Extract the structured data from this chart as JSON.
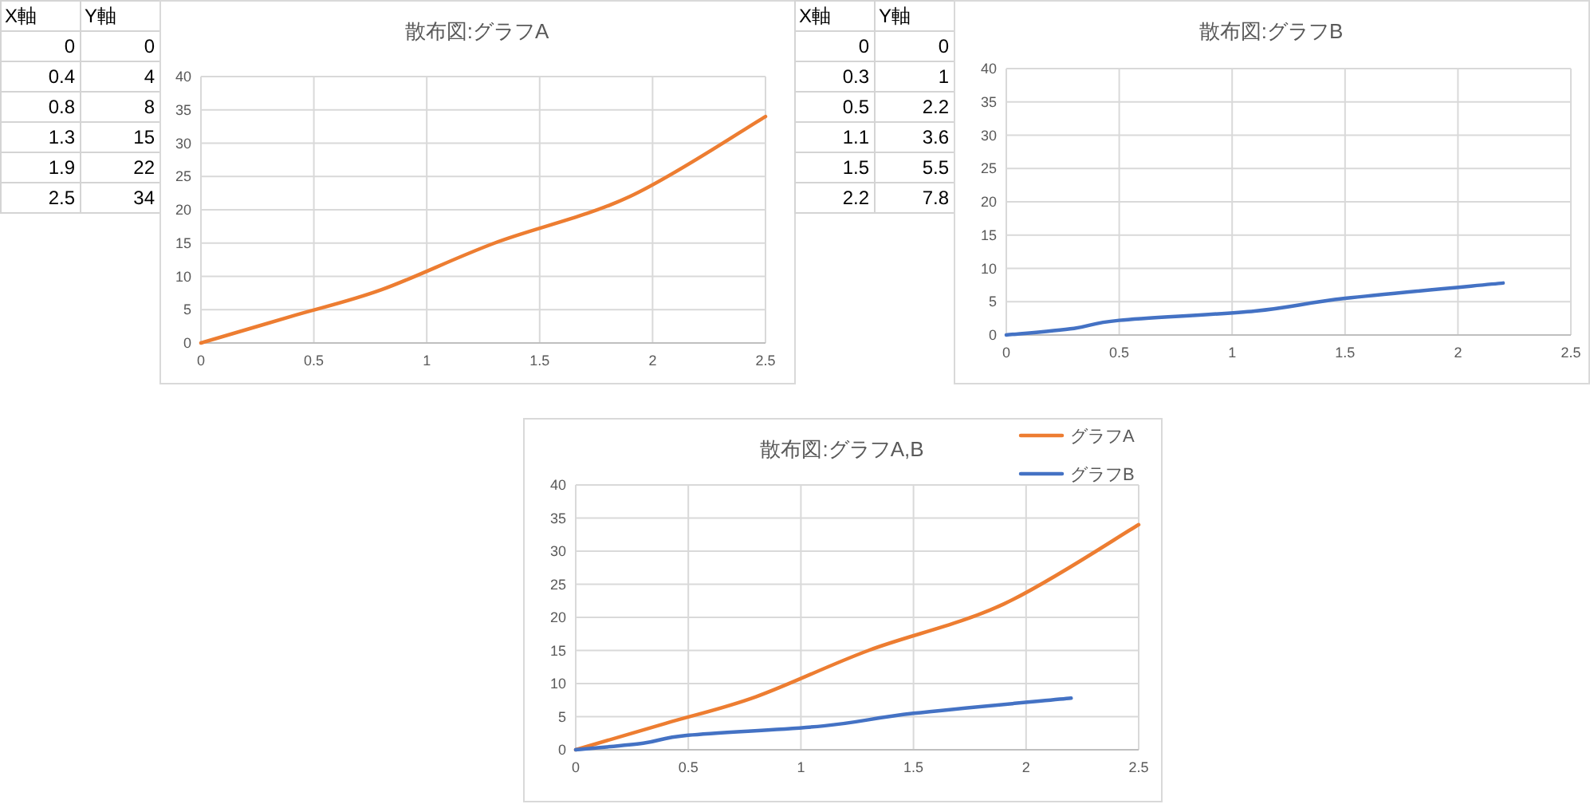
{
  "chart_data": [
    {
      "type": "other",
      "annotations": [
        "X軸",
        "Y軸",
        "0",
        "0",
        "0.4",
        "4",
        "0.8",
        "8",
        "1.3",
        "15",
        "1.9",
        "22",
        "2.5",
        "34"
      ]
    },
    {
      "type": "line",
      "title": "散布図:グラフA",
      "x": [
        0,
        0.4,
        0.8,
        1.3,
        1.9,
        2.5
      ],
      "values": [
        0,
        4,
        8,
        15,
        22,
        34
      ],
      "color": "#ed7d31",
      "xlim": [
        0,
        2.5
      ],
      "xticks": [
        0,
        0.5,
        1,
        1.5,
        2,
        2.5
      ],
      "ylim": [
        0,
        40
      ],
      "yticks": [
        0,
        5,
        10,
        15,
        20,
        25,
        30,
        35,
        40
      ],
      "grid": true,
      "marker": "none",
      "line_style": "solid"
    },
    {
      "type": "other",
      "annotations": [
        "X軸",
        "Y軸",
        "0",
        "0",
        "0.3",
        "1",
        "0.5",
        "2.2",
        "1.1",
        "3.6",
        "1.5",
        "5.5",
        "2.2",
        "7.8"
      ]
    },
    {
      "type": "line",
      "title": "散布図:グラフB",
      "x": [
        0,
        0.3,
        0.5,
        1.1,
        1.5,
        2.2
      ],
      "values": [
        0,
        1,
        2.2,
        3.6,
        5.5,
        7.8
      ],
      "color": "#4472c4",
      "xlim": [
        0,
        2.5
      ],
      "xticks": [
        0,
        0.5,
        1,
        1.5,
        2,
        2.5
      ],
      "ylim": [
        0,
        40
      ],
      "yticks": [
        0,
        5,
        10,
        15,
        20,
        25,
        30,
        35,
        40
      ],
      "grid": true,
      "marker": "none",
      "line_style": "solid"
    },
    {
      "type": "line",
      "title": "散布図:グラフA,B",
      "legend": "top right",
      "series": [
        {
          "name": "グラフA",
          "color": "#ed7d31",
          "x": [
            0,
            0.4,
            0.8,
            1.3,
            1.9,
            2.5
          ],
          "values": [
            0,
            4,
            8,
            15,
            22,
            34
          ]
        },
        {
          "name": "グラフB",
          "color": "#4472c4",
          "x": [
            0,
            0.3,
            0.5,
            1.1,
            1.5,
            2.2
          ],
          "values": [
            0,
            1,
            2.2,
            3.6,
            5.5,
            7.8
          ]
        }
      ],
      "xlim": [
        0,
        2.5
      ],
      "xticks": [
        0,
        0.5,
        1,
        1.5,
        2,
        2.5
      ],
      "ylim": [
        0,
        40
      ],
      "yticks": [
        0,
        5,
        10,
        15,
        20,
        25,
        30,
        35,
        40
      ],
      "grid": true,
      "marker": "none",
      "line_style": "solid"
    }
  ]
}
